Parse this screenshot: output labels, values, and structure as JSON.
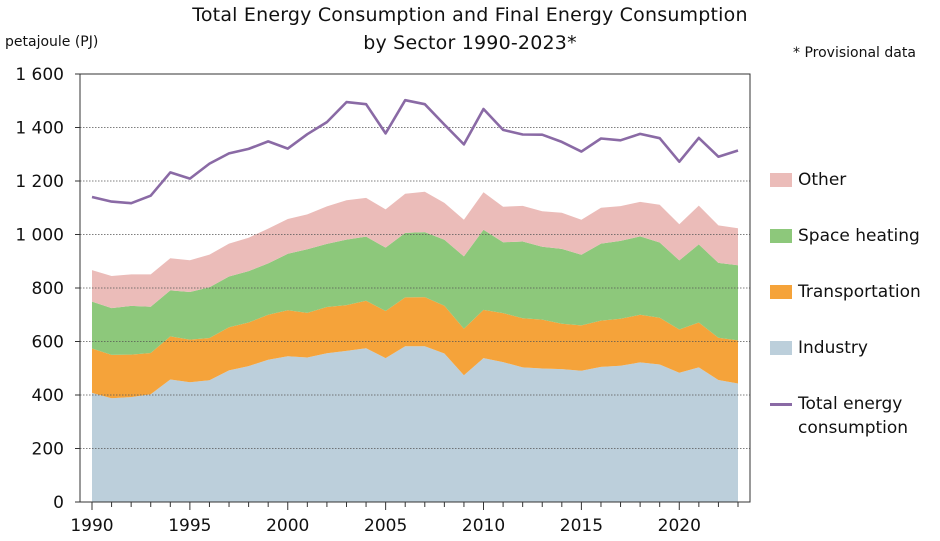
{
  "chart_data": {
    "type": "area",
    "title_line1": "Total Energy Consumption and Final Energy Consumption",
    "title_line2": "by Sector 1990-2023*",
    "ylabel": "petajoule (PJ)",
    "note": "* Provisional data",
    "ylim": [
      0,
      1600
    ],
    "yticks": [
      0,
      200,
      400,
      600,
      800,
      1000,
      1200,
      1400,
      1600
    ],
    "ytick_labels": [
      "0",
      "200",
      "400",
      "600",
      "800",
      "1 000",
      "1 200",
      "1 400",
      "1 600"
    ],
    "xlim": [
      1990,
      2023
    ],
    "xticks": [
      1990,
      1995,
      2000,
      2005,
      2010,
      2015,
      2020
    ],
    "grid": "horizontal",
    "legend_position": "right",
    "x": [
      1990,
      1991,
      1992,
      1993,
      1994,
      1995,
      1996,
      1997,
      1998,
      1999,
      2000,
      2001,
      2002,
      2003,
      2004,
      2005,
      2006,
      2007,
      2008,
      2009,
      2010,
      2011,
      2012,
      2013,
      2014,
      2015,
      2016,
      2017,
      2018,
      2019,
      2020,
      2021,
      2022,
      2023
    ],
    "series": [
      {
        "name": "Industry",
        "kind": "stacked-area",
        "color": "#bccfdb",
        "values": [
          408,
          388,
          392,
          403,
          458,
          448,
          455,
          492,
          508,
          532,
          545,
          540,
          556,
          565,
          575,
          538,
          582,
          582,
          555,
          474,
          538,
          523,
          503,
          499,
          497,
          491,
          505,
          509,
          522,
          514,
          483,
          503,
          456,
          443
        ]
      },
      {
        "name": "Transportation",
        "kind": "stacked-area",
        "color": "#f5a33a",
        "values": [
          166,
          162,
          159,
          154,
          161,
          159,
          158,
          161,
          163,
          168,
          172,
          167,
          173,
          171,
          177,
          176,
          183,
          184,
          179,
          174,
          180,
          183,
          184,
          183,
          169,
          169,
          173,
          176,
          178,
          175,
          162,
          168,
          158,
          161
        ]
      },
      {
        "name": "Space heating",
        "kind": "stacked-area",
        "color": "#8dc87b",
        "values": [
          175,
          175,
          182,
          173,
          172,
          178,
          190,
          190,
          192,
          192,
          211,
          238,
          236,
          245,
          240,
          237,
          241,
          243,
          246,
          270,
          300,
          265,
          287,
          272,
          280,
          264,
          288,
          291,
          293,
          281,
          258,
          292,
          280,
          281
        ]
      },
      {
        "name": "Other",
        "kind": "stacked-area",
        "color": "#ebbcb9",
        "values": [
          118,
          120,
          118,
          121,
          120,
          119,
          122,
          123,
          125,
          130,
          130,
          130,
          140,
          147,
          145,
          143,
          146,
          151,
          138,
          137,
          140,
          133,
          133,
          133,
          135,
          131,
          134,
          130,
          129,
          141,
          135,
          145,
          140,
          138
        ]
      },
      {
        "name": "Total energy\nconsumption",
        "kind": "line",
        "color": "#8a6aa5",
        "values": [
          1140,
          1123,
          1117,
          1145,
          1232,
          1209,
          1265,
          1303,
          1320,
          1348,
          1321,
          1375,
          1420,
          1495,
          1487,
          1378,
          1502,
          1487,
          1411,
          1337,
          1469,
          1391,
          1374,
          1373,
          1346,
          1310,
          1359,
          1352,
          1376,
          1360,
          1272,
          1361,
          1291,
          1314
        ]
      }
    ]
  }
}
